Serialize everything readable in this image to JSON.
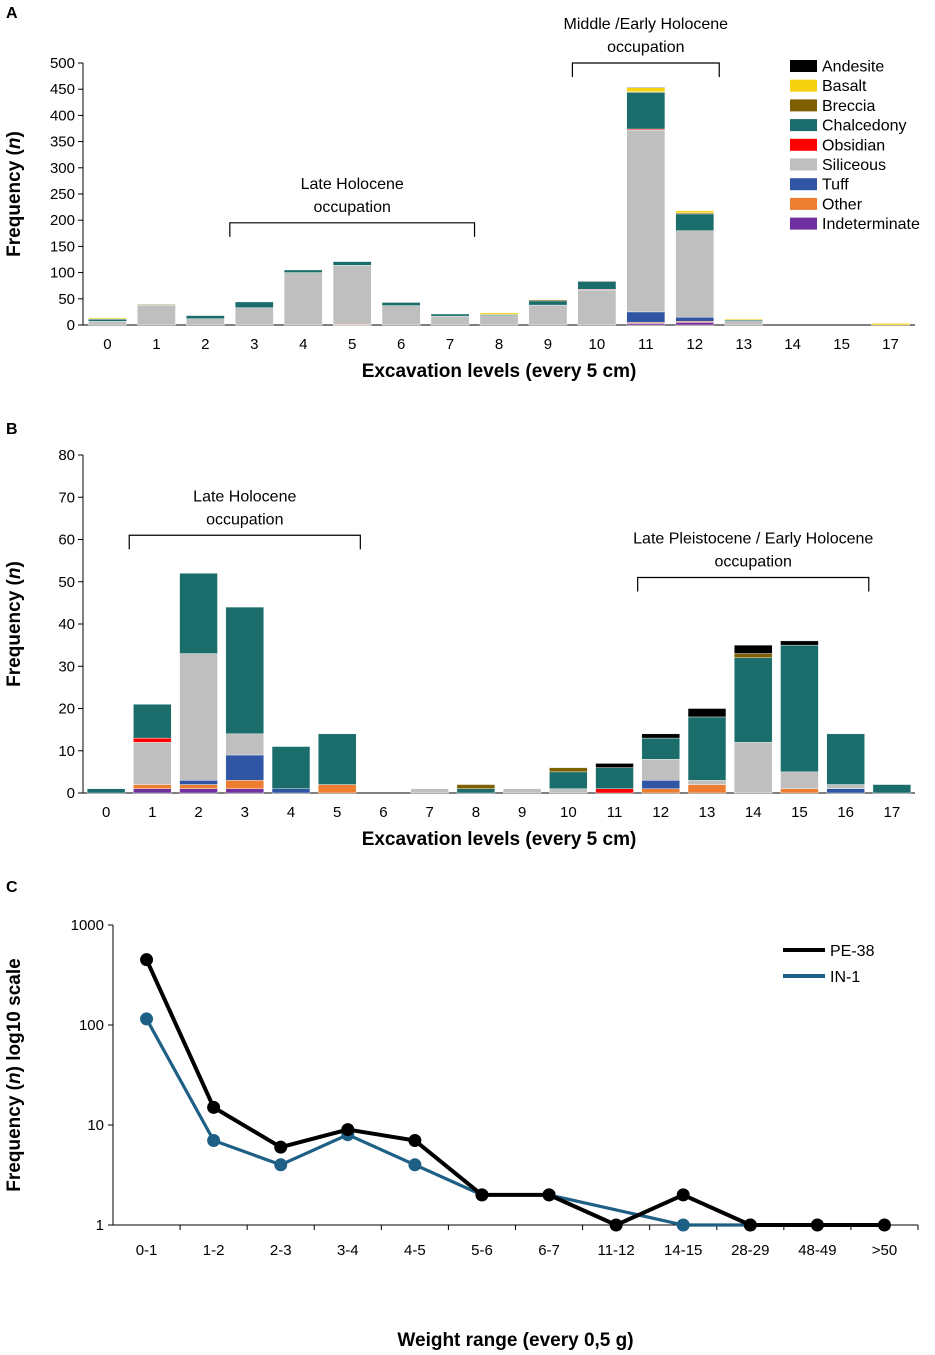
{
  "colors": {
    "Andesite": "#000000",
    "Basalt": "#f5d10f",
    "Breccia": "#7f6000",
    "Chalcedony": "#1a6d6a",
    "Obsidian": "#ff0000",
    "Siliceous": "#bfbfbf",
    "Tuff": "#2f55a4",
    "Other": "#ed7d31",
    "Indeterminate": "#7030a0",
    "PE-38": "#000000",
    "IN-1": "#1d5f85"
  },
  "legend_a": {
    "entries": [
      "Andesite",
      "Basalt",
      "Breccia",
      "Chalcedony",
      "Obsidian",
      "Siliceous",
      "Tuff",
      "Other",
      "Indeterminate"
    ]
  },
  "chart_data": [
    {
      "panel": "A",
      "type": "bar",
      "stacked": true,
      "xlabel": "Excavation levels (every 5 cm)",
      "ylabel": "Frequency (n)",
      "ylim": [
        0,
        500
      ],
      "yticks": [
        0,
        50,
        100,
        150,
        200,
        250,
        300,
        350,
        400,
        450,
        500
      ],
      "legend_position": "top-right",
      "categories": [
        "0",
        "1",
        "2",
        "3",
        "4",
        "5",
        "6",
        "7",
        "8",
        "9",
        "10",
        "11",
        "12",
        "13",
        "14",
        "15",
        "17"
      ],
      "series": [
        {
          "name": "Indeterminate",
          "values": [
            0,
            0,
            0,
            0,
            0,
            0,
            0,
            0,
            0,
            0,
            0,
            3,
            5,
            0,
            0,
            0,
            0
          ]
        },
        {
          "name": "Other",
          "values": [
            0,
            0,
            0,
            0,
            0,
            1,
            0,
            0,
            0,
            0,
            0,
            2,
            2,
            0,
            0,
            0,
            0
          ]
        },
        {
          "name": "Tuff",
          "values": [
            0,
            0,
            0,
            0,
            0,
            0,
            0,
            0,
            0,
            0,
            0,
            20,
            8,
            0,
            0,
            0,
            0
          ]
        },
        {
          "name": "Siliceous",
          "values": [
            7,
            38,
            12,
            33,
            100,
            113,
            37,
            17,
            18,
            38,
            67,
            347,
            165,
            8,
            0,
            0,
            0
          ]
        },
        {
          "name": "Obsidian",
          "values": [
            0,
            0,
            0,
            0,
            0,
            0,
            0,
            0,
            0,
            0,
            1,
            2,
            0,
            0,
            0,
            0,
            0
          ]
        },
        {
          "name": "Chalcedony",
          "values": [
            4,
            1,
            6,
            11,
            5,
            7,
            6,
            4,
            2,
            8,
            15,
            70,
            32,
            2,
            0,
            0,
            0
          ]
        },
        {
          "name": "Breccia",
          "values": [
            1,
            1,
            0,
            0,
            0,
            0,
            0,
            0,
            0,
            2,
            0,
            1,
            2,
            0,
            0,
            0,
            0
          ]
        },
        {
          "name": "Basalt",
          "values": [
            2,
            0,
            0,
            0,
            0,
            0,
            0,
            0,
            3,
            0,
            0,
            8,
            4,
            2,
            0,
            0,
            3
          ]
        },
        {
          "name": "Andesite",
          "values": [
            0,
            0,
            0,
            0,
            0,
            0,
            0,
            0,
            0,
            0,
            1,
            1,
            0,
            0,
            0,
            0,
            0
          ]
        }
      ],
      "annotations": [
        {
          "text": [
            "Late Holocene",
            "occupation"
          ],
          "from_level": 2.5,
          "to_level": 7.5,
          "y": 195
        },
        {
          "text": [
            "Middle /Early Holocene",
            "occupation"
          ],
          "from_level": 9.5,
          "to_level": 12.5,
          "y": 500
        }
      ]
    },
    {
      "panel": "B",
      "type": "bar",
      "stacked": true,
      "xlabel": "Excavation levels (every 5 cm)",
      "ylabel": "Frequency (n)",
      "ylim": [
        0,
        80
      ],
      "yticks": [
        0,
        10,
        20,
        30,
        40,
        50,
        60,
        70,
        80
      ],
      "categories": [
        "0",
        "1",
        "2",
        "3",
        "4",
        "5",
        "6",
        "7",
        "8",
        "9",
        "10",
        "11",
        "12",
        "13",
        "14",
        "15",
        "16",
        "17"
      ],
      "series": [
        {
          "name": "Indeterminate",
          "values": [
            0,
            1,
            1,
            1,
            0,
            0,
            0,
            0,
            0,
            0,
            0,
            0,
            0,
            0,
            0,
            0,
            0,
            0
          ]
        },
        {
          "name": "Other",
          "values": [
            0,
            1,
            1,
            2,
            0,
            2,
            0,
            0,
            0,
            0,
            0,
            0,
            1,
            2,
            0,
            1,
            0,
            0
          ]
        },
        {
          "name": "Tuff",
          "values": [
            0,
            0,
            1,
            6,
            1,
            0,
            0,
            0,
            0,
            0,
            0,
            0,
            2,
            0,
            0,
            0,
            1,
            0
          ]
        },
        {
          "name": "Siliceous",
          "values": [
            0,
            10,
            30,
            5,
            0,
            0,
            0,
            1,
            0,
            1,
            1,
            0,
            5,
            1,
            12,
            4,
            1,
            0
          ]
        },
        {
          "name": "Obsidian",
          "values": [
            0,
            1,
            0,
            0,
            0,
            0,
            0,
            0,
            0,
            0,
            0,
            1,
            0,
            0,
            0,
            0,
            0,
            0
          ]
        },
        {
          "name": "Chalcedony",
          "values": [
            1,
            8,
            19,
            30,
            10,
            12,
            0,
            0,
            1,
            0,
            4,
            5,
            5,
            15,
            20,
            30,
            12,
            2
          ]
        },
        {
          "name": "Breccia",
          "values": [
            0,
            0,
            0,
            0,
            0,
            0,
            0,
            0,
            1,
            0,
            1,
            0,
            0,
            0,
            1,
            0,
            0,
            0
          ]
        },
        {
          "name": "Basalt",
          "values": [
            0,
            0,
            0,
            0,
            0,
            0,
            0,
            0,
            0,
            0,
            0,
            0,
            0,
            0,
            0,
            0,
            0,
            0
          ]
        },
        {
          "name": "Andesite",
          "values": [
            0,
            0,
            0,
            0,
            0,
            0,
            0,
            0,
            0,
            0,
            0,
            1,
            1,
            2,
            2,
            1,
            0,
            0
          ]
        }
      ],
      "annotations": [
        {
          "text": [
            "Late Holocene",
            "occupation"
          ],
          "from_level": 0.5,
          "to_level": 5.5,
          "y": 61
        },
        {
          "text": [
            "Late Pleistocene / Early Holocene",
            "occupation"
          ],
          "from_level": 11.5,
          "to_level": 16.5,
          "y": 51
        }
      ]
    },
    {
      "panel": "C",
      "type": "line",
      "yscale": "log10",
      "xlabel": "Weight range (every 0,5 g)",
      "ylabel": "Frequency (n) log10 scale",
      "ylim": [
        1,
        1000
      ],
      "yticks": [
        1,
        10,
        100,
        1000
      ],
      "legend_position": "top-right",
      "categories": [
        "0-1",
        "1-2",
        "2-3",
        "3-4",
        "4-5",
        "5-6",
        "6-7",
        "11-12",
        "14-15",
        "28-29",
        "48-49",
        ">50"
      ],
      "series": [
        {
          "name": "PE-38",
          "values": [
            450,
            15,
            6,
            9,
            7,
            2,
            2,
            1,
            2,
            1,
            1,
            1
          ]
        },
        {
          "name": "IN-1",
          "values": [
            115,
            7,
            4,
            8,
            4,
            2,
            2,
            null,
            1,
            1,
            null,
            null
          ]
        }
      ]
    }
  ]
}
